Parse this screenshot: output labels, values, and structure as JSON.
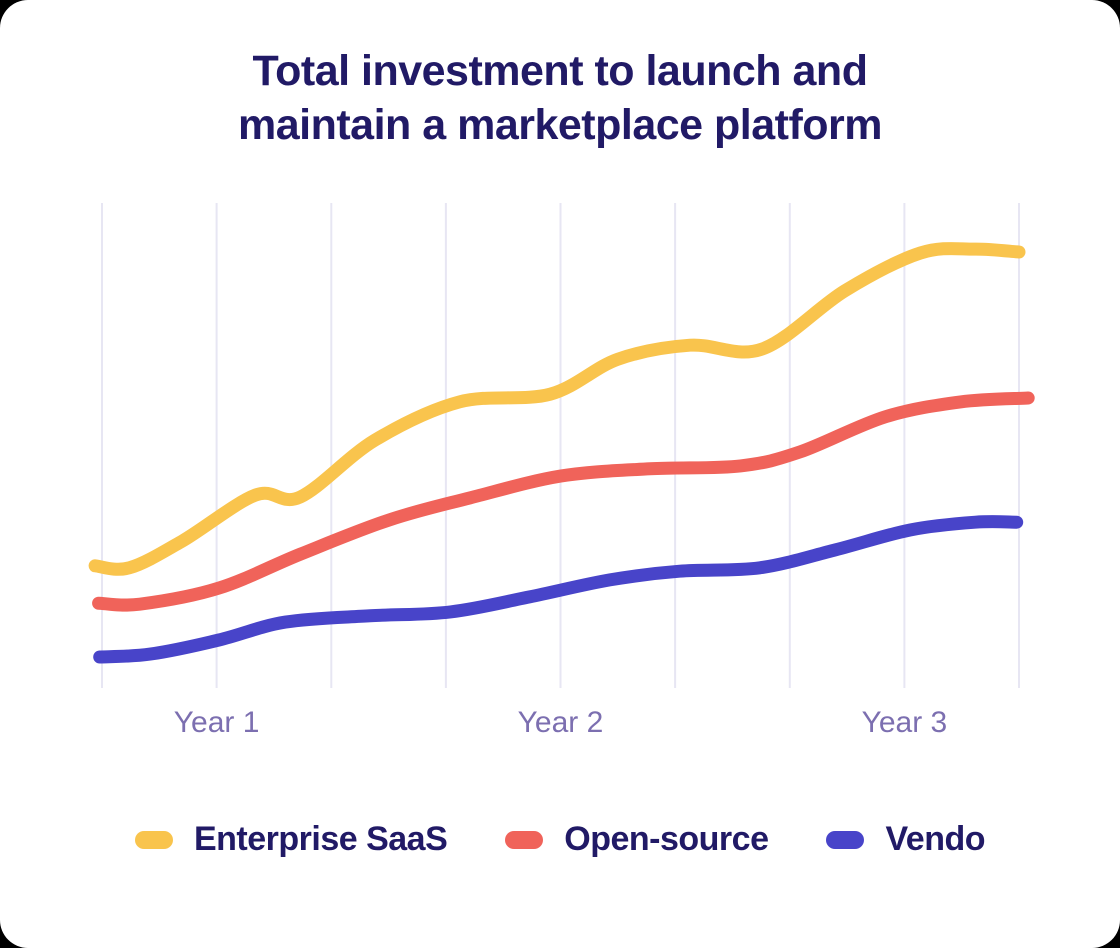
{
  "page": {
    "background_color": "#000000",
    "card_background": "#FFFFFF"
  },
  "header": {
    "title": "Total investment to launch and maintain a marketplace platform",
    "title_color": "#211A66"
  },
  "chart_data": {
    "type": "line",
    "title": "Total investment to launch and maintain a marketplace platform",
    "grid": "vertical-gridlines-only",
    "grid_color": "#E7E6F3",
    "gridlines_x": [
      0,
      1,
      2,
      3,
      4,
      5,
      6,
      7,
      8
    ],
    "x_ticks": [
      {
        "label": "Year 1",
        "pos": 1
      },
      {
        "label": "Year 2",
        "pos": 4
      },
      {
        "label": "Year 3",
        "pos": 7
      }
    ],
    "x_axis_note": "unlabeled time axis; 9 gridlines, year labels under gridlines 2, 5 and 8",
    "y_axis_note": "unlabeled y axis; relative total investment, arbitrary units 0-100",
    "axis_label_color": "#7C6FB0",
    "legend_position": "bottom",
    "line_width": 13,
    "series": [
      {
        "name": "Enterprise SaaS",
        "color": "#F9C44D",
        "points": [
          [
            -0.06,
            25.6
          ],
          [
            0.24,
            25.2
          ],
          [
            0.7,
            30.7
          ],
          [
            1.34,
            40.2
          ],
          [
            1.73,
            39.8
          ],
          [
            2.38,
            51.5
          ],
          [
            3.12,
            59.4
          ],
          [
            3.91,
            61.0
          ],
          [
            4.5,
            68.2
          ],
          [
            5.13,
            71.1
          ],
          [
            5.76,
            70.3
          ],
          [
            6.48,
            82.3
          ],
          [
            7.14,
            90.1
          ],
          [
            7.62,
            90.9
          ],
          [
            8.0,
            90.3
          ]
        ]
      },
      {
        "name": "Open-source",
        "color": "#F0635A",
        "points": [
          [
            -0.03,
            17.9
          ],
          [
            0.33,
            17.7
          ],
          [
            1.02,
            21.0
          ],
          [
            1.73,
            28.0
          ],
          [
            2.51,
            35.1
          ],
          [
            3.21,
            39.6
          ],
          [
            4.0,
            44.1
          ],
          [
            4.78,
            45.6
          ],
          [
            5.57,
            46.2
          ],
          [
            6.09,
            49.1
          ],
          [
            6.83,
            56.3
          ],
          [
            7.49,
            59.4
          ],
          [
            8.08,
            60.2
          ]
        ]
      },
      {
        "name": "Vendo",
        "color": "#4844C9",
        "points": [
          [
            -0.02,
            6.8
          ],
          [
            0.42,
            7.4
          ],
          [
            1.02,
            10.3
          ],
          [
            1.6,
            14.0
          ],
          [
            2.34,
            15.3
          ],
          [
            3.04,
            16.1
          ],
          [
            3.73,
            19.2
          ],
          [
            4.43,
            22.7
          ],
          [
            5.04,
            24.5
          ],
          [
            5.74,
            25.2
          ],
          [
            6.4,
            28.9
          ],
          [
            7.05,
            33.0
          ],
          [
            7.62,
            34.6
          ],
          [
            7.98,
            34.6
          ]
        ]
      }
    ]
  },
  "legend": {
    "items": [
      {
        "label": "Enterprise SaaS",
        "color": "#F9C44D"
      },
      {
        "label": "Open-source",
        "color": "#F0635A"
      },
      {
        "label": "Vendo",
        "color": "#4844C9"
      }
    ]
  }
}
